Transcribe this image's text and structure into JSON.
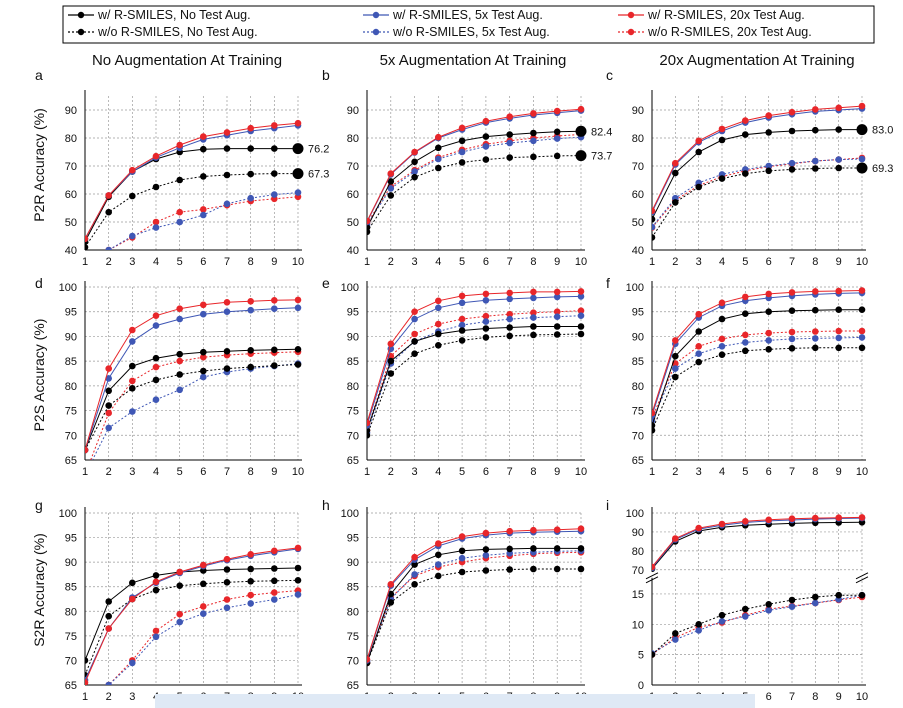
{
  "legend": [
    {
      "name": "w/   R-SMILES, No Test Aug.",
      "color": "#000000",
      "dashed": false
    },
    {
      "name": "w/   R-SMILES, 5x Test Aug.",
      "color": "#3f57b5",
      "dashed": false
    },
    {
      "name": "w/   R-SMILES, 20x Test Aug.",
      "color": "#e8262a",
      "dashed": false
    },
    {
      "name": "w/o R-SMILES, No Test Aug.",
      "color": "#000000",
      "dashed": true
    },
    {
      "name": "w/o R-SMILES, 5x Test Aug.",
      "color": "#3f57b5",
      "dashed": true
    },
    {
      "name": "w/o R-SMILES, 20x Test Aug.",
      "color": "#e8262a",
      "dashed": true
    }
  ],
  "column_titles": [
    "No Augmentation At Training",
    "5x Augmentation At Training",
    "20x Augmentation At Training"
  ],
  "row_labels": [
    "P2R Accuracy (%)",
    "P2S Accuracy (%)",
    "S2R Accuracy (%)"
  ],
  "colors": {
    "black": "#000000",
    "blue": "#3f57b5",
    "red": "#e8262a",
    "grid": "#9a9a9a"
  },
  "chart_data": [
    {
      "panel": "a",
      "type": "line",
      "x": [
        1,
        2,
        3,
        4,
        5,
        6,
        7,
        8,
        9,
        10
      ],
      "ylim": [
        40,
        95
      ],
      "yticks": [
        40,
        50,
        60,
        70,
        80,
        90
      ],
      "series": [
        {
          "values": [
            44,
            59.5,
            68,
            73,
            76.5,
            79.5,
            81,
            82.5,
            83.5,
            84.5
          ]
        },
        {
          "values": [
            44,
            59.5,
            68.5,
            73.5,
            77.5,
            80.5,
            82,
            83.5,
            84.5,
            85.3
          ]
        },
        {
          "values": [
            43,
            59,
            68,
            72.5,
            75,
            76,
            76.2,
            76.2,
            76.2,
            76.2
          ],
          "end_label": "76.2"
        },
        {
          "values": [
            41,
            53.5,
            59.3,
            62.5,
            65,
            66.3,
            66.8,
            67.1,
            67.3,
            67.3
          ],
          "end_label": "67.3"
        },
        {
          "values": [
            35,
            40,
            45,
            48,
            50,
            52.5,
            56.5,
            58.5,
            59.8,
            60.5
          ]
        },
        {
          "values": [
            35,
            40,
            44.5,
            50,
            53.5,
            54.5,
            56,
            57.5,
            58.3,
            59
          ]
        }
      ]
    },
    {
      "panel": "b",
      "type": "line",
      "x": [
        1,
        2,
        3,
        4,
        5,
        6,
        7,
        8,
        9,
        10
      ],
      "ylim": [
        40,
        95
      ],
      "yticks": [
        40,
        50,
        60,
        70,
        80,
        90
      ],
      "series": [
        {
          "values": [
            50,
            67,
            74.8,
            80,
            83,
            85.5,
            87,
            88.2,
            89,
            89.8
          ]
        },
        {
          "values": [
            50.3,
            67.3,
            75,
            80.3,
            83.6,
            86,
            87.6,
            88.8,
            89.6,
            90.3
          ]
        },
        {
          "values": [
            48,
            64.5,
            71.5,
            76.5,
            79,
            80.5,
            81.2,
            81.8,
            82.2,
            82.4
          ],
          "end_label": "82.4"
        },
        {
          "values": [
            46.5,
            59.5,
            66,
            69.3,
            71.3,
            72.3,
            73,
            73.3,
            73.6,
            73.7
          ],
          "end_label": "73.7"
        },
        {
          "values": [
            49,
            62,
            68,
            72.5,
            75,
            77,
            78.2,
            79,
            79.8,
            80.3
          ]
        },
        {
          "values": [
            49.5,
            62.7,
            68.5,
            73,
            75.8,
            77.8,
            79,
            80,
            80.7,
            81.3
          ]
        }
      ]
    },
    {
      "panel": "c",
      "type": "line",
      "x": [
        1,
        2,
        3,
        4,
        5,
        6,
        7,
        8,
        9,
        10
      ],
      "ylim": [
        40,
        95
      ],
      "yticks": [
        40,
        50,
        60,
        70,
        80,
        90
      ],
      "series": [
        {
          "values": [
            53.5,
            70.5,
            78.5,
            82.5,
            85.5,
            87.3,
            88.5,
            89.5,
            90,
            90.5
          ]
        },
        {
          "values": [
            54,
            71,
            79,
            83.2,
            86.2,
            88,
            89.2,
            90.2,
            90.8,
            91.4
          ]
        },
        {
          "values": [
            51,
            67.5,
            75,
            79.3,
            81.2,
            82,
            82.5,
            82.8,
            83,
            83
          ],
          "end_label": "83.0"
        },
        {
          "values": [
            44.5,
            57,
            62.5,
            65.5,
            67.3,
            68.3,
            68.8,
            69.1,
            69.3,
            69.3
          ],
          "end_label": "69.3"
        },
        {
          "values": [
            48.2,
            58.5,
            64,
            67,
            68.8,
            70,
            71,
            71.8,
            72.3,
            72.5
          ]
        },
        {
          "values": [
            48,
            57.8,
            63,
            66.2,
            68.3,
            69.8,
            70.8,
            71.8,
            72.3,
            72.9
          ]
        }
      ]
    },
    {
      "panel": "d",
      "type": "line",
      "x": [
        1,
        2,
        3,
        4,
        5,
        6,
        7,
        8,
        9,
        10
      ],
      "ylim": [
        65,
        100
      ],
      "yticks": [
        65,
        70,
        75,
        80,
        85,
        90,
        95,
        100
      ],
      "series": [
        {
          "values": [
            67,
            81.5,
            89,
            92.2,
            93.5,
            94.5,
            95,
            95.3,
            95.6,
            95.8
          ]
        },
        {
          "values": [
            67,
            83.5,
            91.3,
            94.2,
            95.6,
            96.4,
            96.9,
            97.1,
            97.3,
            97.4
          ]
        },
        {
          "values": [
            67,
            79,
            84,
            85.6,
            86.4,
            86.8,
            87,
            87.2,
            87.3,
            87.4
          ]
        },
        {
          "values": [
            67,
            76,
            79.5,
            81.2,
            82.3,
            83,
            83.5,
            83.8,
            84.1,
            84.3
          ]
        },
        {
          "values": [
            62,
            71.5,
            74.8,
            77.2,
            79.2,
            81.8,
            82.8,
            83.5,
            84,
            84.5
          ]
        },
        {
          "values": [
            62,
            74.5,
            81,
            83.8,
            85,
            85.8,
            86.2,
            86.5,
            86.7,
            86.9
          ]
        }
      ]
    },
    {
      "panel": "e",
      "type": "line",
      "x": [
        1,
        2,
        3,
        4,
        5,
        6,
        7,
        8,
        9,
        10
      ],
      "ylim": [
        65,
        100
      ],
      "yticks": [
        65,
        70,
        75,
        80,
        85,
        90,
        95,
        100
      ],
      "series": [
        {
          "values": [
            72,
            87.5,
            93.5,
            95.8,
            96.8,
            97.3,
            97.6,
            97.8,
            98,
            98.1
          ]
        },
        {
          "values": [
            72.5,
            88.5,
            95,
            97.2,
            98.2,
            98.6,
            98.8,
            99,
            99,
            99.1
          ]
        },
        {
          "values": [
            71,
            85,
            89,
            90.5,
            91.2,
            91.6,
            91.8,
            92,
            92,
            92
          ]
        },
        {
          "values": [
            70,
            82.5,
            86.5,
            88.2,
            89.2,
            89.8,
            90.1,
            90.3,
            90.4,
            90.5
          ]
        },
        {
          "values": [
            70.5,
            84.5,
            89,
            91,
            92.3,
            93,
            93.5,
            93.8,
            94,
            94.2
          ]
        },
        {
          "values": [
            71,
            86,
            90.5,
            92.5,
            93.5,
            94.1,
            94.5,
            94.8,
            95,
            95.2
          ]
        }
      ]
    },
    {
      "panel": "f",
      "type": "line",
      "x": [
        1,
        2,
        3,
        4,
        5,
        6,
        7,
        8,
        9,
        10
      ],
      "ylim": [
        65,
        100
      ],
      "yticks": [
        65,
        70,
        75,
        80,
        85,
        90,
        95,
        100
      ],
      "series": [
        {
          "values": [
            74,
            88.5,
            93.8,
            96.2,
            97.2,
            97.8,
            98.2,
            98.5,
            98.7,
            98.8
          ]
        },
        {
          "values": [
            74.5,
            89.2,
            94.5,
            96.8,
            98,
            98.6,
            98.9,
            99.1,
            99.2,
            99.3
          ]
        },
        {
          "values": [
            72,
            86,
            91,
            93.5,
            94.6,
            95,
            95.2,
            95.3,
            95.4,
            95.4
          ]
        },
        {
          "values": [
            71,
            81.8,
            84.8,
            86.3,
            87.1,
            87.4,
            87.6,
            87.7,
            87.7,
            87.7
          ]
        },
        {
          "values": [
            73,
            83.5,
            86.5,
            88,
            88.8,
            89.2,
            89.5,
            89.6,
            89.7,
            89.8
          ]
        },
        {
          "values": [
            73.5,
            84.5,
            88,
            89.5,
            90.3,
            90.7,
            90.9,
            91,
            91.1,
            91.1
          ]
        }
      ]
    },
    {
      "panel": "g",
      "type": "line",
      "x": [
        1,
        2,
        3,
        4,
        5,
        6,
        7,
        8,
        9,
        10
      ],
      "ylim": [
        65,
        100
      ],
      "yticks": [
        65,
        70,
        75,
        80,
        85,
        90,
        95,
        100
      ],
      "series": [
        {
          "values": [
            66,
            76.5,
            82.8,
            85.8,
            87.8,
            89.2,
            90.4,
            91.3,
            92,
            92.7
          ]
        },
        {
          "values": [
            65.5,
            76.5,
            82.5,
            86,
            88,
            89.4,
            90.6,
            91.6,
            92.3,
            92.9
          ]
        },
        {
          "values": [
            70,
            82,
            85.8,
            87.3,
            88,
            88.3,
            88.5,
            88.6,
            88.7,
            88.8
          ]
        },
        {
          "values": [
            67,
            79,
            82.5,
            84.3,
            85.2,
            85.6,
            85.9,
            86.1,
            86.2,
            86.3
          ]
        },
        {
          "values": [
            60,
            65,
            69.5,
            74.8,
            77.8,
            79.5,
            80.7,
            81.6,
            82.4,
            83.4
          ]
        },
        {
          "values": [
            60,
            65,
            70,
            76,
            79.4,
            81,
            82.4,
            83.3,
            83.8,
            84.2
          ]
        }
      ]
    },
    {
      "panel": "h",
      "type": "line",
      "x": [
        1,
        2,
        3,
        4,
        5,
        6,
        7,
        8,
        9,
        10
      ],
      "ylim": [
        65,
        100
      ],
      "yticks": [
        65,
        70,
        75,
        80,
        85,
        90,
        95,
        100
      ],
      "series": [
        {
          "values": [
            70,
            85.2,
            90.5,
            93.3,
            94.8,
            95.5,
            95.9,
            96.1,
            96.2,
            96.3
          ]
        },
        {
          "values": [
            70.2,
            85.5,
            91,
            93.8,
            95.2,
            95.9,
            96.3,
            96.5,
            96.6,
            96.8
          ]
        },
        {
          "values": [
            69.5,
            83.5,
            89.5,
            91.5,
            92.3,
            92.6,
            92.7,
            92.8,
            92.8,
            92.8
          ]
        },
        {
          "values": [
            69.5,
            81.8,
            85.5,
            87.2,
            88,
            88.3,
            88.5,
            88.6,
            88.6,
            88.6
          ]
        },
        {
          "values": [
            69.8,
            82.5,
            87.5,
            89.5,
            90.8,
            91.4,
            91.8,
            92,
            92.2,
            92.3
          ]
        },
        {
          "values": [
            69.5,
            82.8,
            87.2,
            89,
            90,
            90.8,
            91.3,
            91.7,
            91.9,
            92
          ]
        }
      ]
    },
    {
      "panel": "i",
      "type": "line",
      "x": [
        1,
        2,
        3,
        4,
        5,
        6,
        7,
        8,
        9,
        10
      ],
      "ylim": [
        0,
        100
      ],
      "yticks": [
        0,
        5,
        10,
        15,
        70,
        80,
        90,
        100
      ],
      "broken_axis": [
        17,
        70
      ],
      "series": [
        {
          "values": [
            71,
            86,
            91.5,
            93.5,
            95,
            95.8,
            96.3,
            96.8,
            97.1,
            97.3
          ]
        },
        {
          "values": [
            71.5,
            86.5,
            92,
            94.2,
            95.6,
            96.4,
            97,
            97.3,
            97.5,
            97.7
          ]
        },
        {
          "values": [
            70.5,
            85,
            90.5,
            92.5,
            93.5,
            94.1,
            94.5,
            94.8,
            95,
            95.1
          ]
        },
        {
          "values": [
            5,
            8.5,
            10,
            11.5,
            12.5,
            13.3,
            14,
            14.5,
            14.8,
            14.8
          ]
        },
        {
          "values": [
            5.2,
            7.5,
            9,
            10.5,
            11.3,
            12.3,
            12.9,
            13.5,
            14.1,
            14.8
          ]
        },
        {
          "values": [
            5,
            7.8,
            9.5,
            10.3,
            11.5,
            12.5,
            13,
            13.5,
            14,
            14.5
          ]
        }
      ]
    }
  ]
}
